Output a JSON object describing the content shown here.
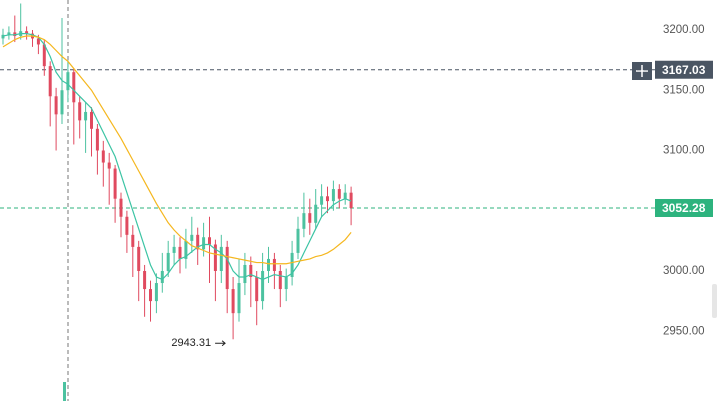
{
  "chart_data": {
    "type": "candlestick",
    "up_color": "#4cc2a0",
    "down_color": "#e04a5f",
    "open": [
      3193,
      3196,
      3198,
      3195,
      3199,
      3197,
      3193,
      3188,
      3170,
      3145,
      3130,
      3150,
      3165,
      3140,
      3125,
      3132,
      3118,
      3100,
      3090,
      3085,
      3060,
      3045,
      3030,
      3020,
      3000,
      2985,
      2975,
      2990,
      3000,
      3015,
      3020,
      3010,
      3025,
      3030,
      3018,
      3028,
      3022,
      3000,
      3020,
      2985,
      2965,
      2990,
      3005,
      2995,
      2975,
      3000,
      3010,
      3000,
      2985,
      2995,
      3015,
      3035,
      3048,
      3040,
      3055,
      3062,
      3058,
      3068,
      3060,
      3065
    ],
    "high": [
      3201,
      3203,
      3212,
      3222,
      3203,
      3200,
      3196,
      3192,
      3174,
      3152,
      3210,
      3175,
      3168,
      3145,
      3140,
      3136,
      3122,
      3108,
      3098,
      3088,
      3065,
      3050,
      3038,
      3025,
      3005,
      2992,
      2998,
      3015,
      3025,
      3030,
      3028,
      3035,
      3045,
      3036,
      3040,
      3045,
      3026,
      3030,
      3025,
      2995,
      3010,
      3015,
      3012,
      3000,
      3015,
      3020,
      3015,
      3005,
      3002,
      3025,
      3045,
      3065,
      3060,
      3068,
      3072,
      3070,
      3075,
      3072,
      3072,
      3070
    ],
    "low": [
      3188,
      3192,
      3190,
      3192,
      3192,
      3186,
      3180,
      3162,
      3120,
      3100,
      3122,
      3140,
      3105,
      3110,
      3098,
      3095,
      3080,
      3070,
      3055,
      3040,
      3028,
      3015,
      2995,
      2975,
      2962,
      2958,
      2965,
      2982,
      2995,
      3005,
      2998,
      3002,
      3015,
      3005,
      3012,
      2990,
      2975,
      2990,
      2965,
      2943.31,
      2958,
      2980,
      2970,
      2955,
      2968,
      2990,
      2985,
      2970,
      2975,
      2988,
      3010,
      3028,
      3030,
      3035,
      3045,
      3048,
      3050,
      3052,
      3055,
      3038
    ],
    "close": [
      3196,
      3198,
      3195,
      3199,
      3197,
      3193,
      3188,
      3170,
      3145,
      3130,
      3150,
      3165,
      3140,
      3125,
      3132,
      3118,
      3100,
      3090,
      3085,
      3060,
      3045,
      3030,
      3020,
      3000,
      2985,
      2975,
      2990,
      3000,
      3015,
      3020,
      3010,
      3025,
      3030,
      3018,
      3028,
      3022,
      3000,
      3020,
      2985,
      2965,
      2990,
      3005,
      2995,
      2975,
      3000,
      3010,
      3000,
      2985,
      2995,
      3015,
      3035,
      3048,
      3040,
      3055,
      3062,
      3058,
      3068,
      3060,
      3065,
      3052.28
    ],
    "moving_averages": [
      {
        "color": "#3cc4a4",
        "values": [
          3195,
          3196,
          3196,
          3197,
          3197,
          3196,
          3194,
          3188,
          3178,
          3165,
          3158,
          3155,
          3150,
          3145,
          3140,
          3135,
          3125,
          3115,
          3105,
          3095,
          3080,
          3065,
          3050,
          3035,
          3020,
          3005,
          2995,
          2993,
          2998,
          3005,
          3010,
          3012,
          3016,
          3020,
          3022,
          3022,
          3018,
          3015,
          3010,
          3000,
          2995,
          2995,
          2997,
          2995,
          2993,
          2995,
          2997,
          2996,
          2995,
          2998,
          3005,
          3015,
          3025,
          3035,
          3045,
          3050,
          3055,
          3058,
          3060,
          3058
        ]
      },
      {
        "color": "#f5b71f",
        "values": [
          3186,
          3189,
          3192,
          3194,
          3195,
          3195,
          3194,
          3192,
          3188,
          3183,
          3178,
          3174,
          3168,
          3162,
          3156,
          3150,
          3142,
          3134,
          3126,
          3118,
          3110,
          3101,
          3092,
          3083,
          3074,
          3065,
          3056,
          3048,
          3040,
          3034,
          3029,
          3025,
          3021,
          3019,
          3017,
          3015,
          3014,
          3013,
          3012,
          3011,
          3010,
          3009,
          3008,
          3007,
          3007,
          3006,
          3006,
          3006,
          3006,
          3007,
          3008,
          3009,
          3010,
          3012,
          3013,
          3015,
          3018,
          3022,
          3026,
          3032
        ]
      }
    ],
    "price_lines": [
      {
        "value": 3167.03,
        "color": "#4a5563"
      },
      {
        "value": 3052.28,
        "color": "#2db37e"
      }
    ],
    "ylim": [
      2892.1,
      3224.9
    ],
    "yticks": [
      {
        "value": 2950,
        "label": "2950.00"
      },
      {
        "value": 3000,
        "label": "3000.00"
      },
      {
        "value": 3050,
        "label": "3050.00"
      },
      {
        "value": 3100,
        "label": "3100.00"
      },
      {
        "value": 3150,
        "label": "3150.00"
      },
      {
        "value": 3200,
        "label": "3200.00"
      }
    ]
  }
}
